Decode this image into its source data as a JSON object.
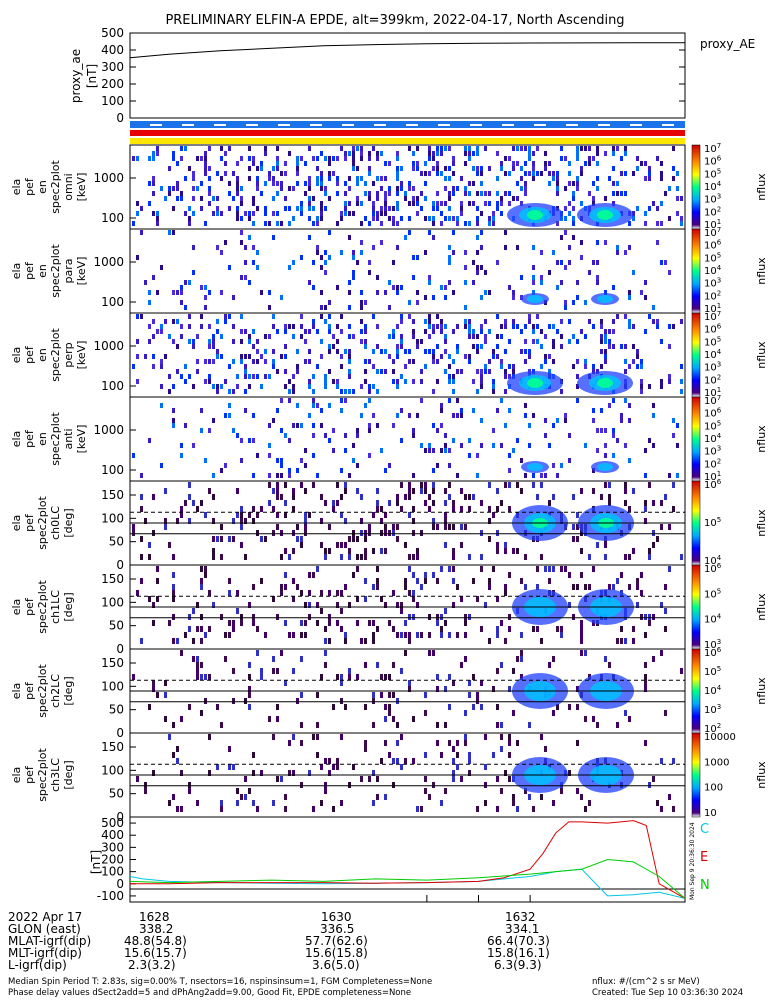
{
  "title": "PRELIMINARY ELFIN-A EPDE, alt=399km, 2022-04-17, North Ascending",
  "colors": {
    "spectrogram_bg": "#3c0050",
    "bar_blue": "#1a73e8",
    "bar_red": "#e60000",
    "bar_yellow": "#ffe600",
    "line_C": "#00c8e6",
    "line_E": "#dd0000",
    "line_N": "#00cc00"
  },
  "chart_data": [
    {
      "type": "line",
      "panel": "proxy_ae",
      "ylabel": "proxy_ae [nT]",
      "ylim": [
        0,
        500
      ],
      "yticks": [
        "500",
        "400",
        "300",
        "200",
        "100",
        "0"
      ],
      "legend": [
        "proxy_AE"
      ],
      "series": [
        {
          "name": "proxy_AE",
          "x_min": [
            16.5,
            18,
            20,
            22,
            24,
            26,
            28,
            30,
            32,
            34,
            36,
            38
          ],
          "values": [
            355,
            375,
            395,
            410,
            425,
            432,
            437,
            440,
            441,
            442,
            443,
            443
          ]
        }
      ]
    },
    {
      "type": "heatmap",
      "panel": "energy spectrogram 1",
      "ylabel": "ela pef en spec2plot omni [keV]",
      "yscale": "log",
      "yticks": [
        "1000",
        "100"
      ],
      "colorbar": {
        "label": "nflux",
        "ticks": [
          "10^7",
          "10^6",
          "10^5",
          "10^4",
          "10^3",
          "10^2",
          "10^1"
        ]
      }
    },
    {
      "type": "heatmap",
      "panel": "energy spectrogram 2",
      "ylabel": "ela pef en spec2plot para [keV]",
      "yscale": "log",
      "yticks": [
        "1000",
        "100"
      ],
      "colorbar": {
        "label": "nflux",
        "ticks": [
          "10^7",
          "10^6",
          "10^5",
          "10^4",
          "10^3",
          "10^2",
          "10^1"
        ]
      }
    },
    {
      "type": "heatmap",
      "panel": "energy spectrogram 3",
      "ylabel": "ela pef en spec2plot perp [keV]",
      "yscale": "log",
      "yticks": [
        "1000",
        "100"
      ],
      "colorbar": {
        "label": "nflux",
        "ticks": [
          "10^7",
          "10^6",
          "10^5",
          "10^4",
          "10^3",
          "10^2",
          "10^1"
        ]
      }
    },
    {
      "type": "heatmap",
      "panel": "energy spectrogram 4",
      "ylabel": "ela pef en spec2plot anti [keV]",
      "yscale": "log",
      "yticks": [
        "1000",
        "100"
      ],
      "colorbar": {
        "label": "nflux",
        "ticks": [
          "10^7",
          "10^6",
          "10^5",
          "10^4",
          "10^3",
          "10^2",
          "10^1"
        ]
      }
    },
    {
      "type": "heatmap",
      "panel": "pitch angle ch0",
      "ylabel": "ela pef spec2plot ch0LC [deg]",
      "yticks": [
        "150",
        "100",
        "50",
        "0"
      ],
      "ylim": [
        0,
        180
      ],
      "colorbar": {
        "label": "nflux",
        "ticks": [
          "10^6",
          "10^5",
          "10^4"
        ]
      }
    },
    {
      "type": "heatmap",
      "panel": "pitch angle ch1",
      "ylabel": "ela pef spec2plot ch1LC [deg]",
      "yticks": [
        "150",
        "100",
        "50",
        "0"
      ],
      "ylim": [
        0,
        180
      ],
      "colorbar": {
        "label": "nflux",
        "ticks": [
          "10^6",
          "10^5",
          "10^4",
          "10^3"
        ]
      }
    },
    {
      "type": "heatmap",
      "panel": "pitch angle ch2",
      "ylabel": "ela pef spec2plot ch2LC [deg]",
      "yticks": [
        "150",
        "100",
        "50",
        "0"
      ],
      "ylim": [
        0,
        180
      ],
      "colorbar": {
        "label": "nflux",
        "ticks": [
          "10^6",
          "10^5",
          "10^4",
          "10^3",
          "10^2"
        ]
      }
    },
    {
      "type": "heatmap",
      "panel": "pitch angle ch3",
      "ylabel": "ela pef spec2plot ch3LC [deg]",
      "yticks": [
        "150",
        "100",
        "50",
        "0"
      ],
      "ylim": [
        0,
        180
      ],
      "colorbar": {
        "label": "nflux",
        "ticks": [
          "10000",
          "1000",
          "100",
          "10"
        ]
      }
    },
    {
      "type": "line",
      "panel": "magnetic field",
      "ylabel": "[nT]",
      "ylim": [
        -150,
        550
      ],
      "yticks": [
        "500",
        "400",
        "300",
        "200",
        "100",
        "0",
        "-100"
      ],
      "legend": [
        "C",
        "E",
        "N"
      ],
      "series": [
        {
          "name": "C",
          "x_min": [
            16.5,
            17,
            18,
            20,
            22,
            24,
            26,
            28,
            30,
            31,
            32,
            32.5,
            33,
            33.5,
            34,
            35,
            36,
            37,
            38
          ],
          "values": [
            60,
            40,
            20,
            10,
            5,
            0,
            5,
            10,
            20,
            40,
            60,
            80,
            100,
            110,
            120,
            -100,
            -90,
            -70,
            -120
          ]
        },
        {
          "name": "E",
          "x_min": [
            16.5,
            18,
            20,
            22,
            24,
            26,
            28,
            30,
            31,
            32,
            32.5,
            33,
            33.5,
            34,
            35,
            36,
            36.5,
            37,
            38
          ],
          "values": [
            0,
            0,
            10,
            10,
            10,
            5,
            10,
            20,
            50,
            120,
            250,
            420,
            510,
            510,
            500,
            520,
            480,
            0,
            -120
          ]
        },
        {
          "name": "N",
          "x_min": [
            16.5,
            18,
            20,
            22,
            24,
            26,
            28,
            30,
            32,
            33,
            34,
            35,
            36,
            37,
            38
          ],
          "values": [
            20,
            10,
            20,
            30,
            20,
            40,
            30,
            50,
            80,
            100,
            120,
            200,
            180,
            60,
            -120
          ]
        }
      ]
    }
  ],
  "footer_side": "Mon Sep 9 20:36:30 2024",
  "time_table": {
    "date": "2022 Apr 17",
    "times": [
      "1628",
      "1630",
      "1632"
    ],
    "rows": [
      {
        "label": "GLON (east)",
        "values": [
          "338.2",
          "336.5",
          "334.1"
        ]
      },
      {
        "label": "MLAT-igrf(dip)",
        "values": [
          "48.8(54.8)",
          "57.7(62.6)",
          "66.4(70.3)"
        ]
      },
      {
        "label": "MLT-igrf(dip)",
        "values": [
          "15.6(15.7)",
          "15.6(15.8)",
          "15.8(16.1)"
        ]
      },
      {
        "label": "L-igrf(dip)",
        "values": [
          "2.3(3.2)",
          "3.6(5.0)",
          "6.3(9.3)"
        ]
      }
    ]
  },
  "footer": {
    "line1": "Median Spin Period T: 2.83s, sig=0.00% T, nsectors=16, nspinsinsum=1, FGM Completeness=None",
    "line2": "Phase delay values dSect2add=5 and dPhAng2add=9.00, Good Fit, EPDE completeness=None",
    "units": "nflux: #/(cm^2 s sr MeV)",
    "created": "Created: Tue Sep 10 03:36:30 2024"
  }
}
